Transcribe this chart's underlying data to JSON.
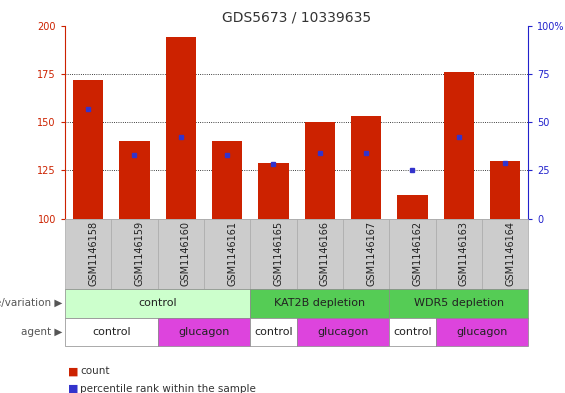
{
  "title": "GDS5673 / 10339635",
  "samples": [
    "GSM1146158",
    "GSM1146159",
    "GSM1146160",
    "GSM1146161",
    "GSM1146165",
    "GSM1146166",
    "GSM1146167",
    "GSM1146162",
    "GSM1146163",
    "GSM1146164"
  ],
  "counts": [
    172,
    140,
    194,
    140,
    129,
    150,
    153,
    112,
    176,
    130
  ],
  "percentile_ranks": [
    57,
    33,
    42,
    33,
    28,
    34,
    34,
    25,
    42,
    29
  ],
  "y_min": 100,
  "y_max": 200,
  "y_ticks_left": [
    100,
    125,
    150,
    175,
    200
  ],
  "y_ticks_right": [
    0,
    25,
    50,
    75,
    100
  ],
  "bar_color": "#cc2200",
  "percentile_color": "#3333cc",
  "bar_width": 0.65,
  "genotype_groups": [
    {
      "label": "control",
      "start": 0,
      "end": 3,
      "color": "#ccffcc"
    },
    {
      "label": "KAT2B depletion",
      "start": 4,
      "end": 6,
      "color": "#55cc55"
    },
    {
      "label": "WDR5 depletion",
      "start": 7,
      "end": 9,
      "color": "#55cc55"
    }
  ],
  "agent_groups": [
    {
      "label": "control",
      "start": 0,
      "end": 1,
      "color": "#ffffff"
    },
    {
      "label": "glucagon",
      "start": 2,
      "end": 3,
      "color": "#dd44dd"
    },
    {
      "label": "control",
      "start": 4,
      "end": 4,
      "color": "#ffffff"
    },
    {
      "label": "glucagon",
      "start": 5,
      "end": 6,
      "color": "#dd44dd"
    },
    {
      "label": "control",
      "start": 7,
      "end": 7,
      "color": "#ffffff"
    },
    {
      "label": "glucagon",
      "start": 8,
      "end": 9,
      "color": "#dd44dd"
    }
  ],
  "sample_bg_color": "#cccccc",
  "left_axis_color": "#cc2200",
  "right_axis_color": "#2222cc",
  "grid_color": "#000000",
  "grid_ticks": [
    125,
    150,
    175
  ],
  "title_fontsize": 10,
  "tick_fontsize": 7,
  "anno_fontsize": 8,
  "legend_fontsize": 7.5,
  "row_label_left": "genotype/variation",
  "row_label_agent": "agent"
}
